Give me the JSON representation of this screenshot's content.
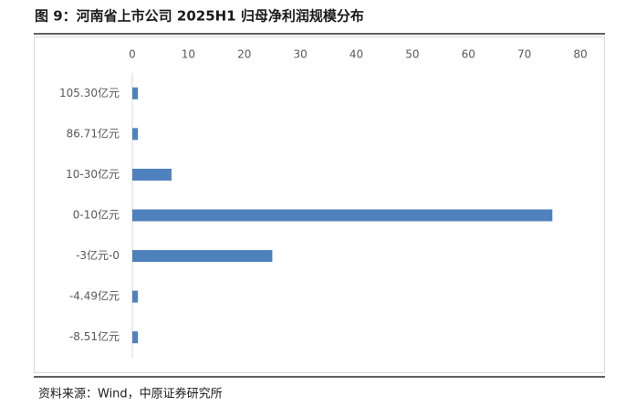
{
  "chart_data": {
    "type": "bar",
    "orientation": "horizontal",
    "title": "图 9：河南省上市公司 2025H1 归母净利润规模分布",
    "source": "资料来源：Wind，中原证券研究所",
    "categories": [
      "105.30亿元",
      "86.71亿元",
      "10-30亿元",
      "0-10亿元",
      "-3亿元-0",
      "-4.49亿元",
      "-8.51亿元"
    ],
    "values": [
      1,
      1,
      7,
      75,
      25,
      1,
      1
    ],
    "color": "#4f81bd",
    "xlim": [
      0,
      80
    ],
    "xticks": [
      0,
      10,
      20,
      30,
      40,
      50,
      60,
      70,
      80
    ],
    "grid": false
  }
}
